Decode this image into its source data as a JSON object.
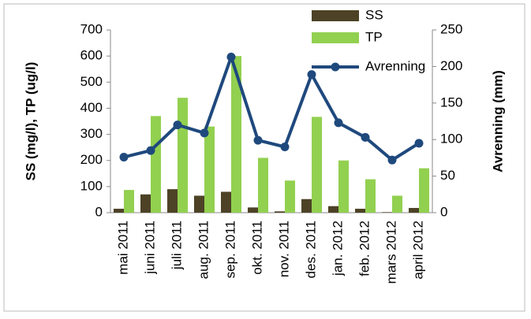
{
  "chart_data": {
    "type": "bar-line",
    "categories": [
      "mai 2011",
      "juni 2011",
      "juli 2011",
      "aug. 2011",
      "sep. 2011",
      "okt. 2011",
      "nov. 2011",
      "des. 2011",
      "jan. 2012",
      "feb. 2012",
      "mars 2012",
      "april 2012"
    ],
    "series": [
      {
        "name": "SS",
        "type": "bar",
        "color": "#4d4226",
        "values": [
          15,
          70,
          90,
          65,
          80,
          20,
          5,
          52,
          25,
          15,
          2,
          18
        ]
      },
      {
        "name": "TP",
        "type": "bar",
        "color": "#92d050",
        "values": [
          87,
          370,
          440,
          330,
          600,
          210,
          123,
          367,
          200,
          128,
          65,
          170
        ]
      },
      {
        "name": "Avrenning",
        "type": "line",
        "axis": "y2",
        "color": "#1f497d",
        "values": [
          76,
          85,
          120,
          109,
          213,
          99,
          90,
          189,
          123,
          103,
          72,
          95
        ]
      }
    ],
    "ylabel": "SS (mg/l), TP (ug/l)",
    "y2label": "Avrenning (mm)",
    "ylim": [
      0,
      700
    ],
    "yticks": [
      0,
      100,
      200,
      300,
      400,
      500,
      600,
      700
    ],
    "y2lim": [
      0,
      250
    ],
    "y2ticks": [
      0,
      50,
      100,
      150,
      200,
      250
    ],
    "grid": false,
    "legend": "top-right"
  }
}
